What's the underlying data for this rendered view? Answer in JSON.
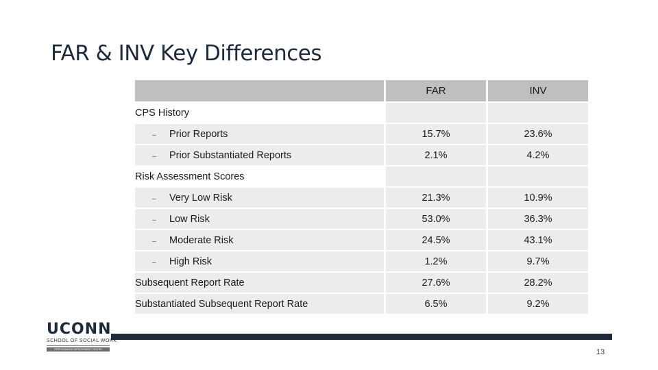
{
  "slide": {
    "title": "FAR & INV Key Differences",
    "page_number": "13"
  },
  "table": {
    "columns": [
      "",
      "FAR",
      "INV"
    ],
    "rows": [
      {
        "kind": "section",
        "label": "CPS History"
      },
      {
        "kind": "item",
        "bullet": "–",
        "label": "Prior Reports",
        "far": "15.7%",
        "inv": "23.6%"
      },
      {
        "kind": "item",
        "bullet": "–",
        "label": "Prior Substantiated Reports",
        "far": "2.1%",
        "inv": "4.2%"
      },
      {
        "kind": "section",
        "label": "Risk Assessment Scores"
      },
      {
        "kind": "item",
        "bullet": "–",
        "label": "Very Low Risk",
        "far": "21.3%",
        "inv": "10.9%"
      },
      {
        "kind": "item",
        "bullet": "–",
        "label": "Low Risk",
        "far": "53.0%",
        "inv": "36.3%"
      },
      {
        "kind": "item",
        "bullet": "–",
        "label": "Moderate Risk",
        "far": "24.5%",
        "inv": "43.1%"
      },
      {
        "kind": "item",
        "bullet": "–",
        "label": "High Risk",
        "far": "1.2%",
        "inv": "9.7%"
      },
      {
        "kind": "plain",
        "label": "Subsequent Report Rate",
        "far": "27.6%",
        "inv": "28.2%"
      },
      {
        "kind": "plain",
        "label": "Substantiated Subsequent Report Rate",
        "far": "6.5%",
        "inv": "9.2%"
      }
    ]
  },
  "logo": {
    "name": "UCONN",
    "subtitle": "SCHOOL OF SOCIAL WORK",
    "tagline": "PERFORMANCE IMPROVEMENT CENTER"
  }
}
